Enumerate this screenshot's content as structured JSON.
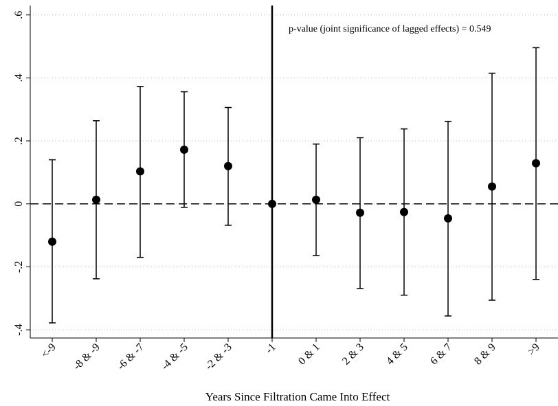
{
  "chart_data": {
    "type": "coefplot",
    "annotation": "p-value (joint significance of lagged effects) = 0.549",
    "x_label": "Years Since Filtration Came Into Effect",
    "categories": [
      "<-9",
      "-8 & -9",
      "-6 & -7",
      "-4 & -5",
      "-2 & -3",
      "-1",
      "0 & 1",
      "2 & 3",
      "4 & 5",
      "6 & 7",
      "8 & 9",
      ">9"
    ],
    "series": [
      {
        "color": "#000000",
        "values": [
          -0.12,
          0.013,
          0.103,
          0.172,
          0.12,
          0,
          0.013,
          -0.028,
          -0.026,
          -0.046,
          0.055,
          0.129
        ],
        "lower": [
          -0.378,
          -0.238,
          -0.17,
          -0.011,
          -0.068,
          null,
          -0.164,
          -0.269,
          -0.29,
          -0.356,
          -0.306,
          -0.24
        ],
        "upper": [
          0.14,
          0.264,
          0.373,
          0.356,
          0.306,
          null,
          0.19,
          0.21,
          0.238,
          0.262,
          0.415,
          0.496
        ]
      }
    ],
    "ylim": [
      -0.426,
      0.63
    ],
    "yticks": [
      {
        "value": -0.4,
        "label": "-.4"
      },
      {
        "value": -0.2,
        "label": "-.2"
      },
      0,
      {
        "value": 0.2,
        "label": ".2"
      },
      {
        "value": 0.4,
        "label": ".4"
      },
      {
        "value": 0.6,
        "label": ".6"
      }
    ],
    "grid": true,
    "hline": 0,
    "vline": "-1"
  }
}
